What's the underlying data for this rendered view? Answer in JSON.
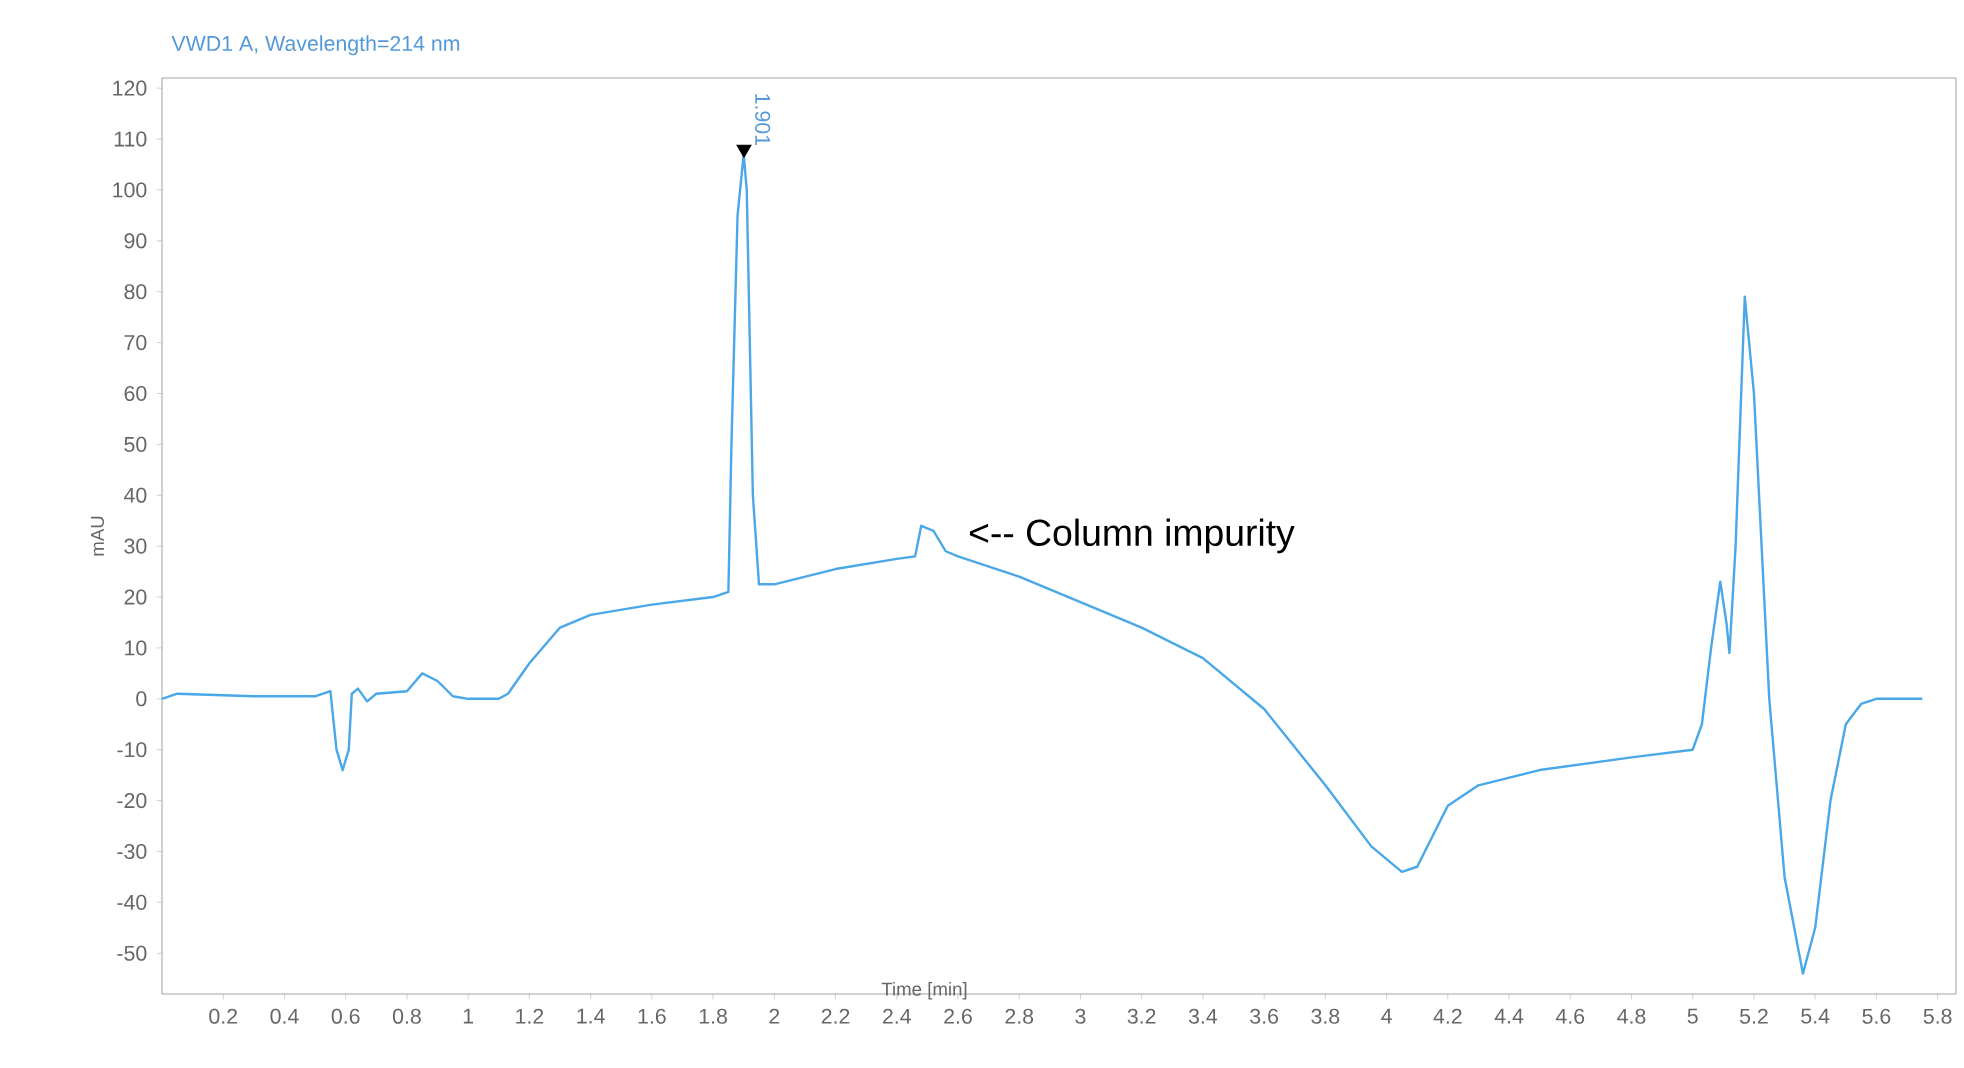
{
  "chart_data": {
    "type": "line",
    "title": "VWD1 A, Wavelength=214 nm",
    "xlabel": "Time [min]",
    "ylabel": "mAU",
    "xlim": [
      0,
      5.86
    ],
    "ylim": [
      -58,
      122
    ],
    "xticks": [
      0.2,
      0.4,
      0.6,
      0.8,
      1,
      1.2,
      1.4,
      1.6,
      1.8,
      2,
      2.2,
      2.4,
      2.6,
      2.8,
      3,
      3.2,
      3.4,
      3.6,
      3.8,
      4,
      4.2,
      4.4,
      4.6,
      4.8,
      5,
      5.2,
      5.4,
      5.6,
      5.8
    ],
    "yticks": [
      -50,
      -40,
      -30,
      -20,
      -10,
      0,
      10,
      20,
      30,
      40,
      50,
      60,
      70,
      80,
      90,
      100,
      110,
      120
    ],
    "grid": false,
    "series": [
      {
        "color": "#4aa8e8",
        "marker": "none",
        "line_style": "solid",
        "x": [
          0,
          0.05,
          0.3,
          0.5,
          0.55,
          0.57,
          0.59,
          0.61,
          0.62,
          0.64,
          0.67,
          0.7,
          0.8,
          0.85,
          0.9,
          0.95,
          1.0,
          1.1,
          1.13,
          1.2,
          1.3,
          1.4,
          1.6,
          1.8,
          1.85,
          1.86,
          1.88,
          1.9,
          1.91,
          1.93,
          1.95,
          2.0,
          2.2,
          2.4,
          2.46,
          2.48,
          2.52,
          2.56,
          2.6,
          2.8,
          3.0,
          3.2,
          3.4,
          3.6,
          3.8,
          3.95,
          4.05,
          4.1,
          4.15,
          4.2,
          4.3,
          4.5,
          4.8,
          5.0,
          5.03,
          5.06,
          5.09,
          5.11,
          5.12,
          5.14,
          5.17,
          5.2,
          5.25,
          5.3,
          5.36,
          5.4,
          5.45,
          5.5,
          5.55,
          5.6,
          5.75
        ],
        "values": [
          0,
          1,
          0.5,
          0.5,
          1.5,
          -10,
          -14,
          -10,
          1,
          2,
          -0.5,
          1,
          1.5,
          5,
          3.5,
          0.5,
          0,
          0,
          1,
          7,
          14,
          16.5,
          18.5,
          20,
          21,
          50,
          95,
          107,
          100,
          40,
          22.5,
          22.5,
          25.5,
          27.5,
          28,
          34,
          33,
          29,
          28,
          24,
          19,
          14,
          8,
          -2,
          -17,
          -29,
          -34,
          -33,
          -27,
          -21,
          -17,
          -14,
          -11.5,
          -10,
          -5,
          10,
          23,
          15,
          9,
          30,
          79,
          60,
          0,
          -35,
          -54,
          -45,
          -20,
          -5,
          -1,
          0,
          0
        ]
      },
      {
        "type": "scatter",
        "color": "#000000",
        "marker": "triangle",
        "x": [
          1.901
        ],
        "values": [
          108
        ]
      }
    ],
    "annotations": [
      {
        "text": "1.901",
        "x": 1.901,
        "y": 108
      },
      {
        "text": "<-- Column impurity",
        "x": 2.55,
        "y": 32
      }
    ]
  }
}
